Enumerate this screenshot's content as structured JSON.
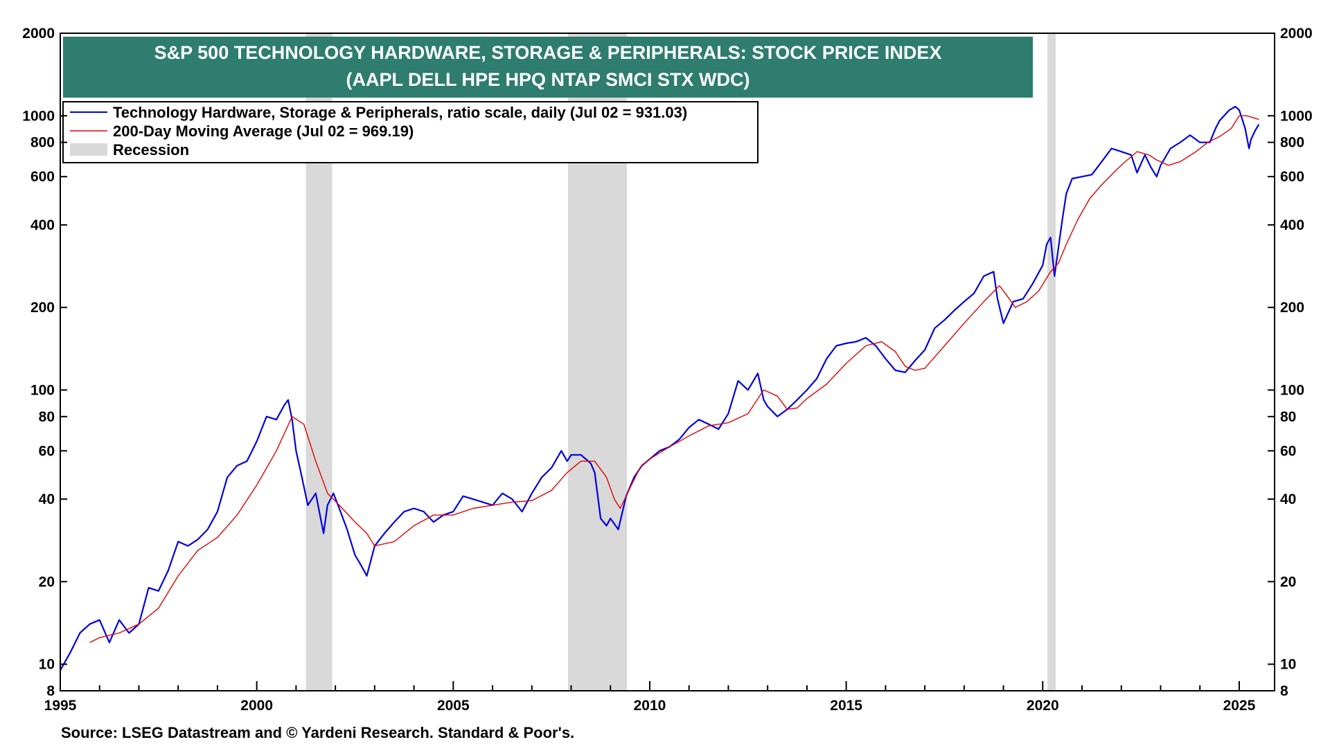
{
  "chart_data": {
    "type": "line",
    "title": "S&P 500 TECHNOLOGY HARDWARE, STORAGE & PERIPHERALS: STOCK PRICE INDEX",
    "subtitle": "(AAPL DELL HPE HPQ NTAP SMCI STX WDC)",
    "y_scale": "log",
    "ylim": [
      8,
      2000
    ],
    "xlim": [
      1995.0,
      2025.9
    ],
    "y_ticks": [
      8,
      10,
      20,
      40,
      60,
      80,
      100,
      200,
      400,
      600,
      800,
      1000,
      2000
    ],
    "x_ticks": [
      1995,
      2000,
      2005,
      2010,
      2015,
      2020,
      2025
    ],
    "grid": false,
    "legend_position": "top-left",
    "source": "Source: LSEG Datastream and © Yardeni Research. Standard & Poor's.",
    "recessions": [
      [
        2001.25,
        2001.92
      ],
      [
        2007.92,
        2009.42
      ],
      [
        2020.12,
        2020.33
      ]
    ],
    "legend": [
      {
        "label": "Technology Hardware, Storage & Peripherals, ratio scale, daily (Jul 02 = 931.03)",
        "color": "#0000dd",
        "kind": "line"
      },
      {
        "label": "200-Day Moving Average (Jul 02 = 969.19)",
        "color": "#e00000",
        "kind": "line"
      },
      {
        "label": "Recession",
        "color": "#d9d9d9",
        "kind": "box"
      }
    ],
    "series": [
      {
        "name": "Technology Hardware, Storage & Peripherals, ratio scale, daily",
        "color": "#0000dd",
        "x": [
          1995.0,
          1995.25,
          1995.5,
          1995.75,
          1996.0,
          1996.25,
          1996.5,
          1996.75,
          1997.0,
          1997.25,
          1997.5,
          1997.75,
          1998.0,
          1998.25,
          1998.5,
          1998.75,
          1999.0,
          1999.25,
          1999.5,
          1999.75,
          2000.0,
          2000.25,
          2000.5,
          2000.7,
          2000.8,
          2000.9,
          2001.0,
          2001.15,
          2001.3,
          2001.5,
          2001.7,
          2001.8,
          2001.95,
          2002.1,
          2002.3,
          2002.5,
          2002.65,
          2002.8,
          2003.0,
          2003.25,
          2003.5,
          2003.75,
          2004.0,
          2004.25,
          2004.5,
          2004.75,
          2005.0,
          2005.25,
          2005.5,
          2005.75,
          2006.0,
          2006.25,
          2006.5,
          2006.75,
          2007.0,
          2007.25,
          2007.5,
          2007.75,
          2007.9,
          2008.0,
          2008.25,
          2008.5,
          2008.6,
          2008.75,
          2008.9,
          2009.0,
          2009.2,
          2009.4,
          2009.6,
          2009.8,
          2010.0,
          2010.25,
          2010.5,
          2010.75,
          2011.0,
          2011.25,
          2011.5,
          2011.75,
          2012.0,
          2012.25,
          2012.5,
          2012.75,
          2012.9,
          2013.0,
          2013.25,
          2013.5,
          2013.75,
          2014.0,
          2014.25,
          2014.5,
          2014.75,
          2015.0,
          2015.25,
          2015.5,
          2015.75,
          2016.0,
          2016.25,
          2016.5,
          2016.75,
          2017.0,
          2017.25,
          2017.5,
          2017.75,
          2018.0,
          2018.25,
          2018.5,
          2018.75,
          2018.85,
          2019.0,
          2019.25,
          2019.5,
          2019.75,
          2020.0,
          2020.1,
          2020.2,
          2020.3,
          2020.5,
          2020.6,
          2020.75,
          2021.0,
          2021.25,
          2021.5,
          2021.75,
          2022.0,
          2022.25,
          2022.4,
          2022.6,
          2022.75,
          2022.9,
          2023.0,
          2023.25,
          2023.5,
          2023.75,
          2024.0,
          2024.25,
          2024.4,
          2024.5,
          2024.75,
          2024.9,
          2025.0,
          2025.15,
          2025.25,
          2025.3,
          2025.4,
          2025.5
        ],
        "values": [
          9.5,
          11.0,
          13.0,
          14.0,
          14.5,
          12.0,
          14.5,
          13.0,
          14.0,
          19.0,
          18.5,
          22.0,
          28.0,
          27.0,
          28.5,
          31.0,
          36.0,
          48.0,
          53.0,
          55.0,
          65.0,
          80.0,
          78.0,
          88.0,
          92.0,
          78.0,
          60.0,
          48.0,
          38.0,
          42.0,
          30.0,
          38.0,
          42.0,
          37.0,
          31.0,
          25.0,
          23.0,
          21.0,
          27.0,
          30.0,
          33.0,
          36.0,
          37.0,
          36.0,
          33.0,
          35.0,
          36.0,
          41.0,
          40.0,
          39.0,
          38.0,
          42.0,
          40.0,
          36.0,
          42.0,
          48.0,
          52.0,
          60.0,
          55.0,
          58.0,
          58.0,
          54.0,
          50.0,
          34.0,
          32.0,
          34.0,
          31.0,
          41.0,
          48.0,
          53.0,
          56.0,
          60.0,
          62.0,
          66.0,
          73.0,
          78.0,
          75.0,
          72.0,
          82.0,
          108.0,
          100.0,
          115.0,
          92.0,
          87.0,
          80.0,
          85.0,
          92.0,
          100.0,
          110.0,
          130.0,
          145.0,
          148.0,
          150.0,
          155.0,
          145.0,
          130.0,
          118.0,
          116.0,
          128.0,
          140.0,
          168.0,
          180.0,
          195.0,
          210.0,
          225.0,
          260.0,
          270.0,
          215.0,
          175.0,
          210.0,
          215.0,
          245.0,
          285.0,
          340.0,
          360.0,
          260.0,
          420.0,
          520.0,
          590.0,
          600.0,
          610.0,
          680.0,
          760.0,
          740.0,
          720.0,
          620.0,
          720.0,
          650.0,
          600.0,
          660.0,
          760.0,
          800.0,
          850.0,
          800.0,
          800.0,
          900.0,
          960.0,
          1050.0,
          1080.0,
          1050.0,
          900.0,
          760.0,
          820.0,
          880.0,
          930.0
        ]
      },
      {
        "name": "200-Day Moving Average",
        "color": "#e00000",
        "x": [
          1995.75,
          1996.0,
          1996.5,
          1997.0,
          1997.5,
          1998.0,
          1998.5,
          1999.0,
          1999.5,
          2000.0,
          2000.5,
          2000.9,
          2001.2,
          2001.5,
          2001.8,
          2002.1,
          2002.5,
          2002.8,
          2003.0,
          2003.5,
          2004.0,
          2004.5,
          2005.0,
          2005.5,
          2006.0,
          2006.5,
          2007.0,
          2007.5,
          2007.9,
          2008.25,
          2008.6,
          2008.9,
          2009.1,
          2009.25,
          2009.5,
          2009.75,
          2010.0,
          2010.5,
          2011.0,
          2011.5,
          2012.0,
          2012.5,
          2012.9,
          2013.25,
          2013.5,
          2013.75,
          2014.0,
          2014.5,
          2015.0,
          2015.5,
          2015.9,
          2016.25,
          2016.5,
          2016.75,
          2017.0,
          2017.5,
          2018.0,
          2018.5,
          2018.9,
          2019.1,
          2019.3,
          2019.6,
          2019.9,
          2020.2,
          2020.4,
          2020.6,
          2020.9,
          2021.2,
          2021.5,
          2021.9,
          2022.1,
          2022.4,
          2022.7,
          2022.9,
          2023.2,
          2023.5,
          2023.9,
          2024.2,
          2024.5,
          2024.8,
          2025.0,
          2025.2,
          2025.5
        ],
        "values": [
          12.0,
          12.5,
          13.0,
          14.0,
          16.0,
          21.0,
          26.0,
          29.0,
          35.0,
          45.0,
          60.0,
          80.0,
          75.0,
          55.0,
          42.0,
          38.0,
          33.0,
          30.0,
          27.0,
          28.0,
          32.0,
          35.0,
          35.0,
          37.0,
          38.0,
          39.0,
          39.5,
          43.0,
          50.0,
          55.0,
          55.0,
          48.0,
          40.0,
          37.0,
          44.0,
          52.0,
          56.0,
          62.0,
          68.0,
          74.0,
          76.0,
          82.0,
          100.0,
          95.0,
          85.0,
          86.0,
          93.0,
          105.0,
          125.0,
          145.0,
          150.0,
          138.0,
          122.0,
          118.0,
          120.0,
          145.0,
          175.0,
          210.0,
          240.0,
          220.0,
          200.0,
          210.0,
          230.0,
          270.0,
          290.0,
          340.0,
          420.0,
          500.0,
          560.0,
          640.0,
          680.0,
          740.0,
          720.0,
          690.0,
          660.0,
          680.0,
          740.0,
          800.0,
          840.0,
          900.0,
          1000.0,
          1000.0,
          969.19
        ]
      }
    ]
  }
}
